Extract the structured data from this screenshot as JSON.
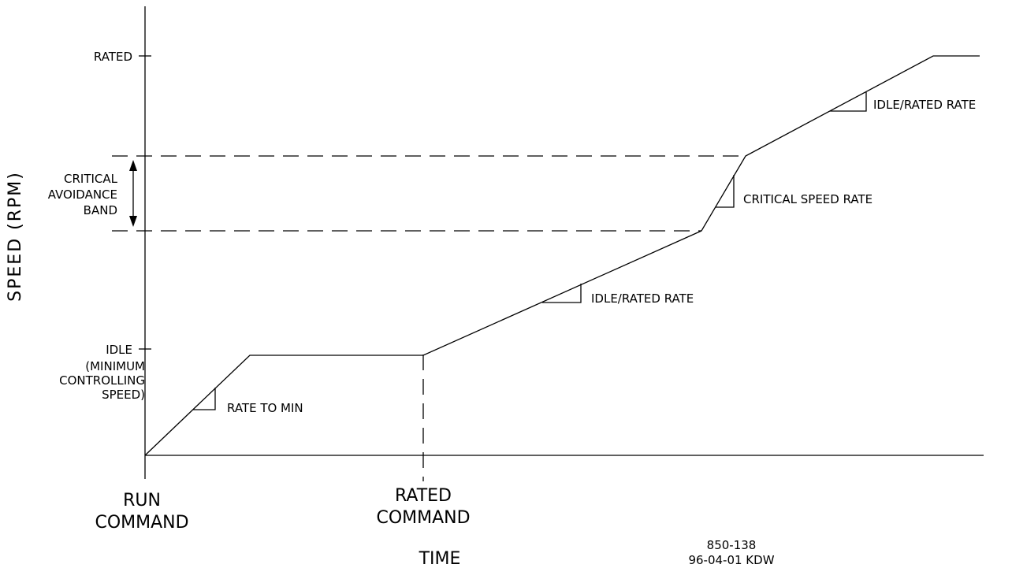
{
  "diagram": {
    "y_axis_label": "SPEED (RPM)",
    "x_axis_label": "TIME",
    "levels": {
      "rated": "RATED",
      "idle": "IDLE",
      "idle_note_line1": "(MINIMUM",
      "idle_note_line2": "CONTROLLING",
      "idle_note_line3": "SPEED)"
    },
    "band": {
      "line1": "CRITICAL",
      "line2": "AVOIDANCE",
      "line3": "BAND"
    },
    "events": {
      "run_line1": "RUN",
      "run_line2": "COMMAND",
      "rated_line1": "RATED",
      "rated_line2": "COMMAND"
    },
    "rates": {
      "rate_to_min": "RATE TO MIN",
      "idle_rated_rate_1": "IDLE/RATED RATE",
      "critical_speed_rate": "CRITICAL SPEED RATE",
      "idle_rated_rate_2": "IDLE/RATED RATE"
    },
    "footer": {
      "drawing_number": "850-138",
      "date_initials": "96-04-01 KDW"
    }
  }
}
